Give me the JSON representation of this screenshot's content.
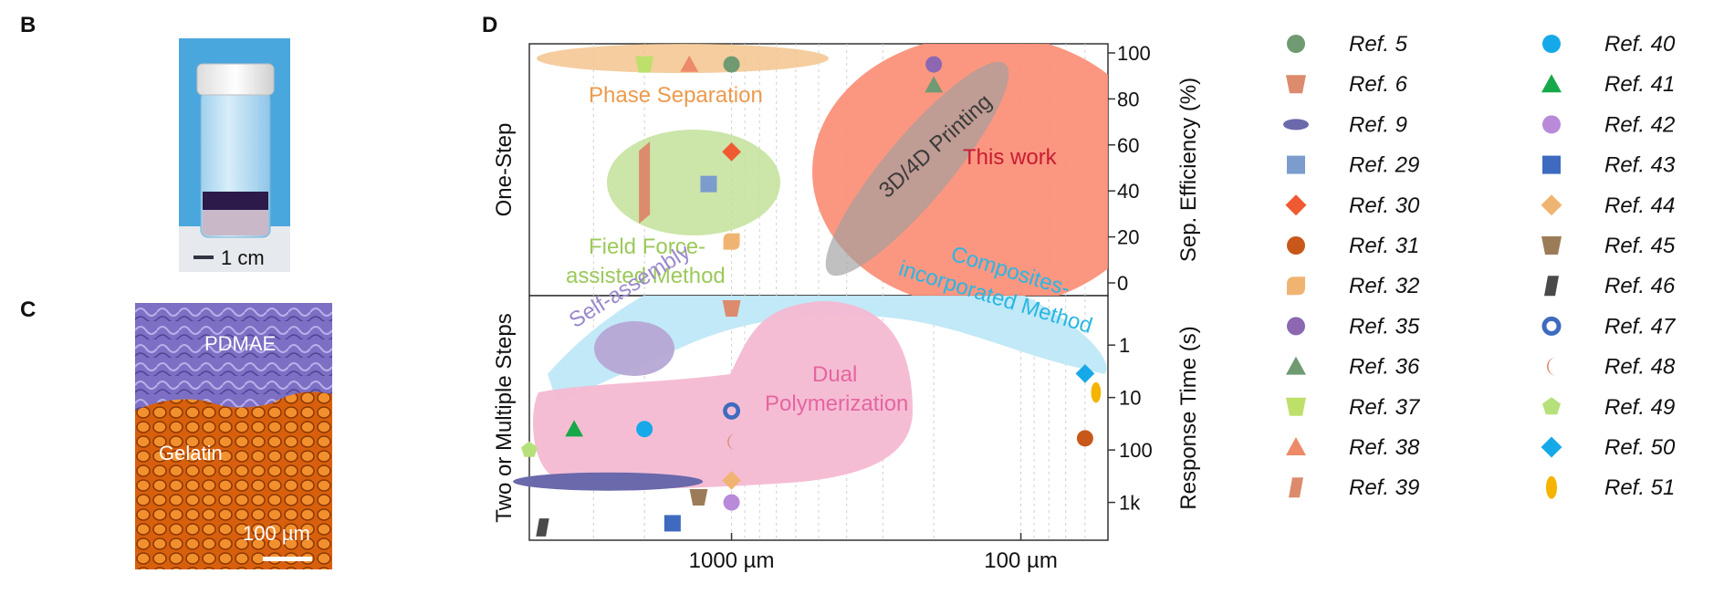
{
  "panels": {
    "b": {
      "letter": "B",
      "scale_label": "1 cm"
    },
    "c": {
      "letter": "C",
      "top_label": "PDMAE",
      "bottom_label": "Gelatin",
      "scale_label": "100 µm"
    },
    "d": {
      "letter": "D"
    }
  },
  "colors": {
    "phase_separation": "#f3c48e",
    "field_force": "#c3e09a",
    "printing": "#b8b8b8",
    "this_work": "#fb8c73",
    "self_assembly": "#b6a7d5",
    "composites": "#bfe8f7",
    "dual_polymerization": "#f4b9d2"
  },
  "chart_data": {
    "type": "scatter",
    "x_axis": {
      "scale": "log-reversed",
      "range_um": [
        5000,
        50
      ],
      "tick_labels": [
        {
          "value": 1000,
          "label": "1000 µm"
        },
        {
          "value": 100,
          "label": "100 µm"
        }
      ]
    },
    "top_panel": {
      "row_label": "One-Step",
      "ylabel": "Sep. Efficiency (%)",
      "ylim": [
        0,
        100
      ],
      "y_ticks": [
        0,
        20,
        40,
        60,
        80,
        100
      ],
      "regions": [
        {
          "name": "Phase Separation",
          "color": "phase_separation"
        },
        {
          "name": "Field Force-assisted Method",
          "label_lines": [
            "Field Force-",
            "assisted Method"
          ],
          "color": "field_force"
        },
        {
          "name": "3D/4D Printing",
          "color": "printing"
        },
        {
          "name": "This work",
          "color": "this_work"
        }
      ]
    },
    "bottom_panel": {
      "row_label": "Two or Multiple Steps",
      "ylabel": "Response Time (s)",
      "y_scale": "log-reversed",
      "y_ticks": [
        {
          "value": 1,
          "label": "1"
        },
        {
          "value": 10,
          "label": "10"
        },
        {
          "value": 100,
          "label": "100"
        },
        {
          "value": 1000,
          "label": "1k"
        }
      ],
      "regions": [
        {
          "name": "Self-assembly",
          "color": "self_assembly"
        },
        {
          "name": "Composites-incorporated Method",
          "label_lines": [
            "Composites-",
            "incorporated Method"
          ],
          "color": "composites"
        },
        {
          "name": "Dual Polymerization",
          "label_lines": [
            "Dual",
            "Polymerization"
          ],
          "color": "dual_polymerization"
        }
      ]
    },
    "points": [
      {
        "ref": "5",
        "panel": "top",
        "x": 1000,
        "y": 95
      },
      {
        "ref": "35",
        "panel": "top",
        "x": 200,
        "y": 95
      },
      {
        "ref": "36",
        "panel": "top",
        "x": 200,
        "y": 86
      },
      {
        "ref": "37",
        "panel": "top",
        "x": 2000,
        "y": 95
      },
      {
        "ref": "38",
        "panel": "top",
        "x": 1400,
        "y": 95
      },
      {
        "ref": "30",
        "panel": "top",
        "x": 1000,
        "y": 57
      },
      {
        "ref": "29",
        "panel": "top",
        "x": 1200,
        "y": 43
      },
      {
        "ref": "39",
        "panel": "top",
        "x": 2000,
        "y": 44
      },
      {
        "ref": "32",
        "panel": "top",
        "x": 1000,
        "y": 18
      },
      {
        "ref": "6",
        "panel": "bottom",
        "x": 1000,
        "y": 0.2
      },
      {
        "ref": "50",
        "panel": "bottom",
        "x": 60,
        "y": 3.5
      },
      {
        "ref": "51",
        "panel": "bottom",
        "x": 55,
        "y": 8
      },
      {
        "ref": "31",
        "panel": "bottom",
        "x": 60,
        "y": 60
      },
      {
        "ref": "47",
        "panel": "bottom",
        "x": 1000,
        "y": 18
      },
      {
        "ref": "48",
        "panel": "bottom",
        "x": 1000,
        "y": 70
      },
      {
        "ref": "41",
        "panel": "bottom",
        "x": 3500,
        "y": 40
      },
      {
        "ref": "40",
        "panel": "bottom",
        "x": 2000,
        "y": 40
      },
      {
        "ref": "49",
        "panel": "bottom",
        "x": 5000,
        "y": 100
      },
      {
        "ref": "9",
        "panel": "bottom",
        "x": 2000,
        "y": 400
      },
      {
        "ref": "44",
        "panel": "bottom",
        "x": 1000,
        "y": 380
      },
      {
        "ref": "45",
        "panel": "bottom",
        "x": 1300,
        "y": 800
      },
      {
        "ref": "42",
        "panel": "bottom",
        "x": 1000,
        "y": 1000
      },
      {
        "ref": "43",
        "panel": "bottom",
        "x": 1600,
        "y": 2500
      },
      {
        "ref": "46",
        "panel": "bottom",
        "x": 4500,
        "y": 3000
      }
    ],
    "legend": [
      {
        "label": "Ref. 5",
        "marker": "circle",
        "color": "#6f9a72"
      },
      {
        "label": "Ref. 6",
        "marker": "trapezoid-down",
        "color": "#dc8b6d"
      },
      {
        "label": "Ref. 9",
        "marker": "ellipse-h",
        "color": "#6a69ab"
      },
      {
        "label": "Ref. 29",
        "marker": "square",
        "color": "#7b9ccc"
      },
      {
        "label": "Ref. 30",
        "marker": "diamond",
        "color": "#f05a33"
      },
      {
        "label": "Ref. 31",
        "marker": "circle",
        "color": "#c8581a"
      },
      {
        "label": "Ref. 32",
        "marker": "leaf",
        "color": "#f0b472"
      },
      {
        "label": "Ref. 35",
        "marker": "circle",
        "color": "#8b68b1"
      },
      {
        "label": "Ref. 36",
        "marker": "triangle",
        "color": "#6f9a72"
      },
      {
        "label": "Ref. 37",
        "marker": "trapezoid-down",
        "color": "#bde06a"
      },
      {
        "label": "Ref. 38",
        "marker": "triangle",
        "color": "#ec8a6a"
      },
      {
        "label": "Ref. 39",
        "marker": "parallelogram",
        "color": "#dc8b6d"
      },
      {
        "label": "Ref. 40",
        "marker": "circle",
        "color": "#16a9e9"
      },
      {
        "label": "Ref. 41",
        "marker": "triangle",
        "color": "#17a84a"
      },
      {
        "label": "Ref. 42",
        "marker": "circle",
        "color": "#b88ad9"
      },
      {
        "label": "Ref. 43",
        "marker": "square",
        "color": "#3e6bbf"
      },
      {
        "label": "Ref. 44",
        "marker": "diamond",
        "color": "#f0b472"
      },
      {
        "label": "Ref. 45",
        "marker": "trapezoid-down",
        "color": "#9c7c58"
      },
      {
        "label": "Ref. 46",
        "marker": "parallelogram",
        "color": "#4a4a4a"
      },
      {
        "label": "Ref. 47",
        "marker": "ring",
        "color": "#3e6bbf"
      },
      {
        "label": "Ref. 48",
        "marker": "crescent",
        "color": "#dc8b6d"
      },
      {
        "label": "Ref. 49",
        "marker": "pentagon",
        "color": "#b5e07a"
      },
      {
        "label": "Ref. 50",
        "marker": "diamond",
        "color": "#16a9e9"
      },
      {
        "label": "Ref. 51",
        "marker": "ellipse-v",
        "color": "#f5b400"
      }
    ]
  }
}
